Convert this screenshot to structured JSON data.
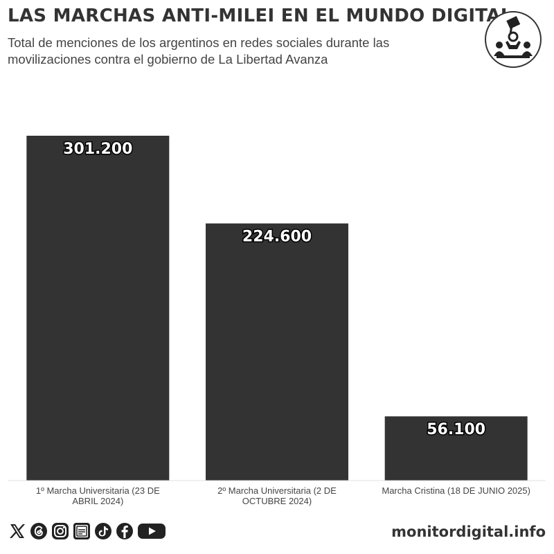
{
  "header": {
    "title": "LAS MARCHAS ANTI-MILEI EN EL MUNDO DIGITAL",
    "subtitle": "Total de menciones de los argentinos en redes sociales durante las movilizaciones contra el gobierno de La Libertad Avanza"
  },
  "logo": {
    "icon": "protest-logo-icon"
  },
  "chart_data": {
    "type": "bar",
    "title": "LAS MARCHAS ANTI-MILEI EN EL MUNDO DIGITAL",
    "subtitle": "Total de menciones de los argentinos en redes sociales durante las movilizaciones contra el gobierno de La Libertad Avanza",
    "categories": [
      [
        "1º Marcha Universitaria (23 DE",
        "ABRIL 2024)"
      ],
      [
        "2º Marcha Universitaria (2 DE",
        "OCTUBRE 2024)"
      ],
      [
        "Marcha Cristina (18 DE JUNIO 2025)"
      ]
    ],
    "values": [
      301200,
      224600,
      56100
    ],
    "data_labels": [
      "301.200",
      "224.600",
      "56.100"
    ],
    "xlabel": "",
    "ylabel": "",
    "ylim": [
      0,
      301200
    ],
    "grid": false,
    "legend": "none",
    "bar_color": "#333333",
    "label_color": "#ffffff"
  },
  "footer": {
    "icons": [
      "x-icon",
      "threads-icon",
      "instagram-icon",
      "newsletter-icon",
      "tiktok-icon",
      "facebook-icon",
      "youtube-icon"
    ],
    "website": "monitordigital.info"
  }
}
